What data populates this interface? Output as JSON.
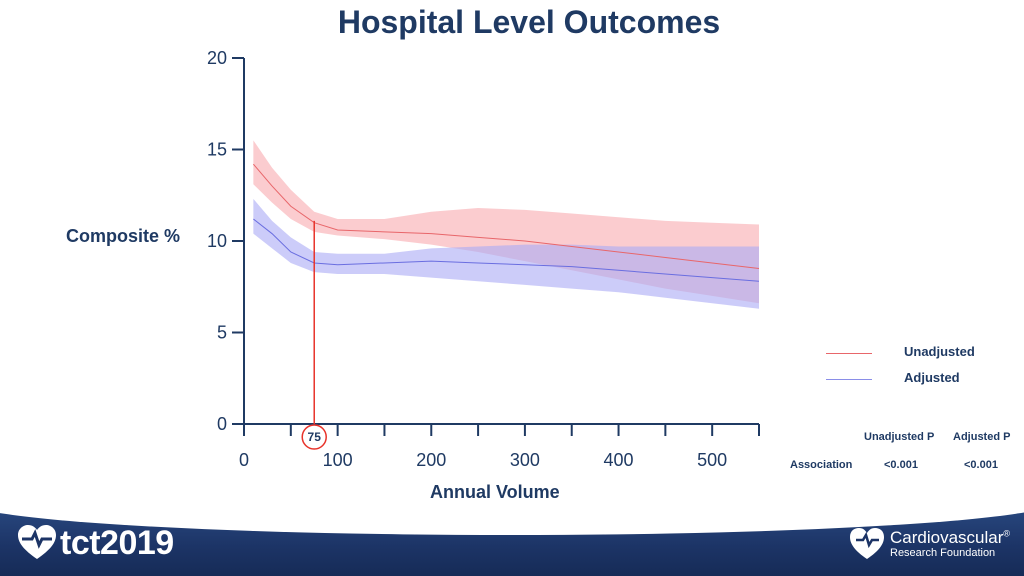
{
  "title": "Hospital Level Outcomes",
  "chart_data": {
    "type": "line",
    "title": "Hospital Level Outcomes",
    "xlabel": "Annual Volume",
    "ylabel": "Composite %",
    "xlim": [
      0,
      550
    ],
    "ylim": [
      0,
      20
    ],
    "x_ticks": [
      0,
      100,
      200,
      300,
      400,
      500
    ],
    "y_ticks": [
      0,
      5,
      10,
      15,
      20
    ],
    "grid": false,
    "legend_position": "right",
    "annotation": {
      "x": 75,
      "label": "75",
      "color": "#e8332a"
    },
    "series": [
      {
        "name": "Unadjusted",
        "color": "#e8666a",
        "band_color": "#f7a3a8",
        "x": [
          10,
          30,
          50,
          75,
          100,
          150,
          200,
          250,
          300,
          350,
          400,
          450,
          500,
          550
        ],
        "y": [
          14.2,
          13.0,
          11.9,
          11.0,
          10.6,
          10.5,
          10.4,
          10.2,
          10.0,
          9.7,
          9.4,
          9.1,
          8.8,
          8.5
        ],
        "lower": [
          13.1,
          12.1,
          11.2,
          10.5,
          10.3,
          10.1,
          9.8,
          9.4,
          8.9,
          8.4,
          7.9,
          7.4,
          7.0,
          6.6
        ],
        "upper": [
          15.5,
          14.0,
          12.8,
          11.6,
          11.2,
          11.2,
          11.6,
          11.8,
          11.7,
          11.5,
          11.3,
          11.1,
          11.0,
          10.9
        ]
      },
      {
        "name": "Adjusted",
        "color": "#6a6ee0",
        "band_color": "#aaaaf5",
        "x": [
          10,
          30,
          50,
          75,
          100,
          150,
          200,
          250,
          300,
          350,
          400,
          450,
          500,
          550
        ],
        "y": [
          11.2,
          10.4,
          9.4,
          8.8,
          8.7,
          8.8,
          8.9,
          8.8,
          8.7,
          8.6,
          8.4,
          8.2,
          8.0,
          7.8
        ],
        "lower": [
          10.4,
          9.6,
          8.8,
          8.3,
          8.2,
          8.2,
          8.0,
          7.8,
          7.6,
          7.4,
          7.2,
          6.9,
          6.6,
          6.3
        ],
        "upper": [
          12.3,
          11.1,
          10.2,
          9.4,
          9.3,
          9.3,
          9.6,
          9.7,
          9.8,
          9.8,
          9.7,
          9.7,
          9.7,
          9.7
        ]
      }
    ]
  },
  "legend": {
    "unadjusted_label": "Unadjusted",
    "adjusted_label": "Adjusted",
    "unadjusted_color": "#e8666a",
    "adjusted_color": "#8a8ee8"
  },
  "pvalues": {
    "col1_header": "Unadjusted P",
    "col2_header": "Adjusted P",
    "row_label": "Association",
    "unadjusted_p": "<0.001",
    "adjusted_p": "<0.001"
  },
  "footer": {
    "left_brand": "tct2019",
    "right_brand_title": "Cardiovascular",
    "right_brand_mark": "®",
    "right_brand_sub": "Research Foundation",
    "bg_color": "#1c3466"
  }
}
